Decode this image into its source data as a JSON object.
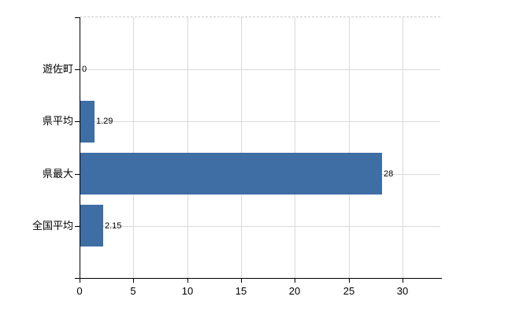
{
  "chart_data": {
    "type": "bar",
    "orientation": "horizontal",
    "title": "",
    "xlabel": "",
    "ylabel": "",
    "categories": [
      "遊佐町",
      "県平均",
      "県最大",
      "全国平均"
    ],
    "values": [
      0,
      1.29,
      28,
      2.15
    ],
    "value_labels": [
      "0",
      "1.29",
      "28",
      "2.15"
    ],
    "xlim": [
      0,
      33.5
    ],
    "xticks": [
      0,
      5,
      10,
      15,
      20,
      25,
      30
    ],
    "xtick_labels": [
      "0",
      "5",
      "10",
      "15",
      "20",
      "25",
      "30"
    ],
    "grid": true,
    "legend": false,
    "bar_color": "#3f6ea5",
    "grid_color": "#d9d9d9",
    "axis_color": "#000000",
    "text_color": "#000000",
    "background": "#ffffff"
  }
}
